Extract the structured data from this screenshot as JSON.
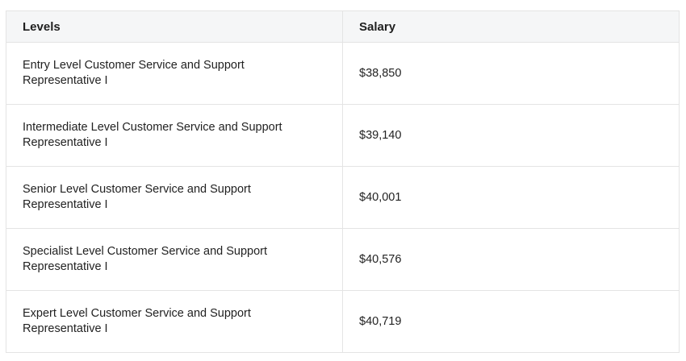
{
  "table": {
    "headers": {
      "levels": "Levels",
      "salary": "Salary"
    },
    "rows": [
      {
        "level": "Entry Level Customer Service and Support Representative I",
        "salary": "$38,850"
      },
      {
        "level": "Intermediate Level Customer Service and Support Representative I",
        "salary": "$39,140"
      },
      {
        "level": "Senior Level Customer Service and Support Representative I",
        "salary": "$40,001"
      },
      {
        "level": "Specialist Level Customer Service and Support Representative I",
        "salary": "$40,576"
      },
      {
        "level": "Expert Level Customer Service and Support Representative I",
        "salary": "$40,719"
      }
    ]
  }
}
